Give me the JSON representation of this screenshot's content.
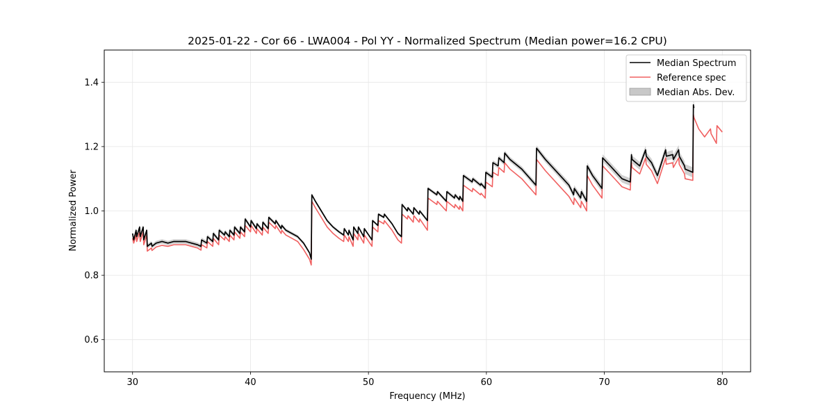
{
  "chart_data": {
    "type": "line",
    "title": "2025-01-22 - Cor 66 - LWA004 - Pol YY - Normalized Spectrum (Median power=16.2 CPU)",
    "xlabel": "Frequency (MHz)",
    "ylabel": "Normalized Power",
    "xlim": [
      27.6,
      82.4
    ],
    "ylim": [
      0.5,
      1.5
    ],
    "xticks": [
      30,
      40,
      50,
      60,
      70,
      80
    ],
    "yticks": [
      0.6,
      0.8,
      1.0,
      1.2,
      1.4
    ],
    "xtick_labels": [
      "30",
      "40",
      "50",
      "60",
      "70",
      "80"
    ],
    "ytick_labels": [
      "0.6",
      "0.8",
      "1.0",
      "1.2",
      "1.4"
    ],
    "grid": true,
    "legend_position": "top-right",
    "legend": [
      {
        "label": "Median Spectrum",
        "kind": "line",
        "color": "#000000"
      },
      {
        "label": "Reference spec",
        "kind": "line",
        "color": "#f06060"
      },
      {
        "label": "Median Abs. Dev.",
        "kind": "band",
        "color": "#c8c8c8"
      }
    ],
    "series": [
      {
        "name": "Median Spectrum",
        "color": "#000000",
        "x": [
          30.0,
          30.1,
          30.3,
          30.35,
          30.6,
          30.65,
          30.9,
          30.95,
          31.2,
          31.25,
          31.6,
          31.65,
          32.0,
          32.5,
          33.0,
          33.5,
          34.0,
          34.5,
          35.0,
          35.5,
          35.8,
          35.85,
          36.3,
          36.35,
          36.8,
          36.85,
          37.3,
          37.35,
          37.8,
          37.85,
          38.2,
          38.25,
          38.6,
          38.65,
          39.1,
          39.15,
          39.5,
          39.55,
          40.0,
          40.05,
          40.5,
          40.55,
          41.0,
          41.05,
          41.5,
          41.55,
          42.1,
          42.15,
          42.6,
          42.65,
          43.0,
          43.5,
          44.0,
          44.5,
          45.0,
          45.15,
          45.2,
          45.5,
          46.0,
          46.5,
          47.0,
          47.5,
          47.9,
          47.95,
          48.3,
          48.35,
          48.7,
          48.75,
          49.1,
          49.15,
          49.6,
          49.65,
          50.3,
          50.35,
          50.8,
          50.85,
          51.3,
          51.35,
          52.0,
          52.5,
          52.8,
          52.85,
          53.3,
          53.35,
          53.8,
          53.85,
          54.3,
          54.35,
          55.0,
          55.05,
          55.8,
          55.85,
          56.6,
          56.65,
          57.3,
          57.35,
          57.7,
          57.75,
          58.0,
          58.05,
          58.8,
          58.85,
          59.5,
          59.55,
          59.9,
          59.95,
          60.5,
          60.55,
          61.0,
          61.05,
          61.5,
          61.55,
          62.0,
          63.0,
          64.2,
          64.25,
          65.0,
          66.0,
          67.0,
          67.4,
          67.45,
          68.0,
          68.05,
          68.5,
          68.55,
          69.0,
          69.8,
          69.85,
          70.5,
          71.0,
          71.5,
          72.2,
          72.3,
          72.35,
          73.0,
          73.5,
          73.55,
          74.0,
          74.5,
          75.2,
          75.25,
          75.8,
          75.85,
          76.3,
          76.35,
          76.8,
          76.85,
          77.5,
          77.55,
          77.6
        ],
        "values": [
          0.93,
          0.91,
          0.94,
          0.92,
          0.95,
          0.92,
          0.95,
          0.91,
          0.94,
          0.89,
          0.9,
          0.89,
          0.9,
          0.905,
          0.9,
          0.905,
          0.905,
          0.905,
          0.9,
          0.895,
          0.89,
          0.91,
          0.9,
          0.92,
          0.905,
          0.93,
          0.91,
          0.94,
          0.925,
          0.935,
          0.92,
          0.94,
          0.925,
          0.95,
          0.93,
          0.95,
          0.935,
          0.975,
          0.95,
          0.97,
          0.945,
          0.96,
          0.94,
          0.965,
          0.945,
          0.98,
          0.96,
          0.97,
          0.945,
          0.955,
          0.94,
          0.93,
          0.92,
          0.9,
          0.87,
          0.85,
          1.05,
          1.03,
          1.0,
          0.97,
          0.95,
          0.935,
          0.925,
          0.945,
          0.925,
          0.94,
          0.91,
          0.95,
          0.93,
          0.95,
          0.92,
          0.945,
          0.91,
          0.97,
          0.955,
          0.99,
          0.98,
          0.99,
          0.96,
          0.93,
          0.92,
          1.02,
          1.0,
          1.01,
          0.99,
          1.01,
          0.99,
          1.0,
          0.97,
          1.07,
          1.05,
          1.06,
          1.03,
          1.06,
          1.04,
          1.05,
          1.035,
          1.045,
          1.03,
          1.11,
          1.09,
          1.1,
          1.08,
          1.085,
          1.07,
          1.12,
          1.105,
          1.15,
          1.14,
          1.165,
          1.15,
          1.18,
          1.16,
          1.13,
          1.08,
          1.195,
          1.16,
          1.12,
          1.08,
          1.05,
          1.07,
          1.04,
          1.06,
          1.03,
          1.14,
          1.11,
          1.07,
          1.165,
          1.14,
          1.12,
          1.1,
          1.09,
          1.175,
          1.16,
          1.14,
          1.19,
          1.17,
          1.15,
          1.11,
          1.19,
          1.17,
          1.175,
          1.16,
          1.19,
          1.17,
          1.14,
          1.13,
          1.12,
          1.33,
          1.32
        ]
      },
      {
        "name": "Reference spec",
        "color": "#f06060",
        "x": [
          30.0,
          30.1,
          30.3,
          30.35,
          30.6,
          30.65,
          30.9,
          30.95,
          31.2,
          31.25,
          31.6,
          31.65,
          32.0,
          32.5,
          33.0,
          33.5,
          34.0,
          34.5,
          35.0,
          35.5,
          35.8,
          35.85,
          36.3,
          36.35,
          36.8,
          36.85,
          37.3,
          37.35,
          37.8,
          37.85,
          38.2,
          38.25,
          38.6,
          38.65,
          39.1,
          39.15,
          39.5,
          39.55,
          40.0,
          40.05,
          40.5,
          40.55,
          41.0,
          41.05,
          41.5,
          41.55,
          42.1,
          42.15,
          42.6,
          42.65,
          43.0,
          43.5,
          44.0,
          44.5,
          45.0,
          45.15,
          45.2,
          45.5,
          46.0,
          46.5,
          47.0,
          47.5,
          47.9,
          47.95,
          48.3,
          48.35,
          48.7,
          48.75,
          49.1,
          49.15,
          49.6,
          49.65,
          50.3,
          50.35,
          50.8,
          50.85,
          51.3,
          51.35,
          52.0,
          52.5,
          52.8,
          52.85,
          53.3,
          53.35,
          53.8,
          53.85,
          54.3,
          54.35,
          55.0,
          55.05,
          55.8,
          55.85,
          56.6,
          56.65,
          57.3,
          57.35,
          57.7,
          57.75,
          58.0,
          58.05,
          58.8,
          58.85,
          59.5,
          59.55,
          59.9,
          59.95,
          60.5,
          60.55,
          61.0,
          61.05,
          61.5,
          61.55,
          62.0,
          63.0,
          64.2,
          64.25,
          65.0,
          66.0,
          67.0,
          67.4,
          67.45,
          68.0,
          68.05,
          68.5,
          68.55,
          69.0,
          69.8,
          69.85,
          70.5,
          71.0,
          71.5,
          72.2,
          72.3,
          72.35,
          73.0,
          73.5,
          73.55,
          74.0,
          74.5,
          75.2,
          75.25,
          75.8,
          75.85,
          76.3,
          76.35,
          76.8,
          76.85,
          77.5,
          77.55,
          77.6,
          78.0,
          78.5,
          79.0,
          79.05,
          79.5,
          79.55,
          80.0
        ],
        "values": [
          0.915,
          0.9,
          0.925,
          0.905,
          0.935,
          0.905,
          0.935,
          0.895,
          0.925,
          0.875,
          0.885,
          0.877,
          0.888,
          0.893,
          0.89,
          0.895,
          0.895,
          0.895,
          0.89,
          0.885,
          0.878,
          0.895,
          0.885,
          0.905,
          0.89,
          0.915,
          0.895,
          0.925,
          0.91,
          0.92,
          0.905,
          0.925,
          0.91,
          0.935,
          0.915,
          0.935,
          0.92,
          0.955,
          0.935,
          0.955,
          0.93,
          0.945,
          0.925,
          0.95,
          0.93,
          0.965,
          0.945,
          0.955,
          0.93,
          0.94,
          0.925,
          0.915,
          0.905,
          0.88,
          0.85,
          0.832,
          1.03,
          1.01,
          0.98,
          0.95,
          0.93,
          0.915,
          0.905,
          0.925,
          0.905,
          0.92,
          0.89,
          0.93,
          0.91,
          0.93,
          0.9,
          0.925,
          0.89,
          0.95,
          0.935,
          0.97,
          0.96,
          0.97,
          0.94,
          0.91,
          0.9,
          0.99,
          0.975,
          0.985,
          0.965,
          0.985,
          0.965,
          0.975,
          0.94,
          1.04,
          1.02,
          1.03,
          1.0,
          1.03,
          1.01,
          1.02,
          1.005,
          1.015,
          1.0,
          1.08,
          1.06,
          1.07,
          1.05,
          1.055,
          1.04,
          1.09,
          1.075,
          1.12,
          1.11,
          1.135,
          1.12,
          1.15,
          1.13,
          1.1,
          1.05,
          1.16,
          1.125,
          1.085,
          1.045,
          1.02,
          1.04,
          1.01,
          1.03,
          1.0,
          1.11,
          1.08,
          1.04,
          1.14,
          1.115,
          1.095,
          1.075,
          1.065,
          1.15,
          1.135,
          1.115,
          1.165,
          1.145,
          1.125,
          1.085,
          1.165,
          1.145,
          1.15,
          1.135,
          1.165,
          1.145,
          1.115,
          1.1,
          1.095,
          1.3,
          1.29,
          1.255,
          1.23,
          1.255,
          1.24,
          1.21,
          1.265,
          1.245
        ]
      }
    ],
    "band": {
      "name": "Median Abs. Dev.",
      "color": "#c8c8c8",
      "half_widths": [
        [
          30.0,
          0.006
        ],
        [
          32.0,
          0.007
        ],
        [
          36.0,
          0.007
        ],
        [
          40.0,
          0.006
        ],
        [
          45.0,
          0.005
        ],
        [
          50.0,
          0.004
        ],
        [
          55.0,
          0.005
        ],
        [
          60.0,
          0.007
        ],
        [
          65.0,
          0.009
        ],
        [
          70.0,
          0.011
        ],
        [
          75.0,
          0.013
        ],
        [
          77.6,
          0.016
        ]
      ]
    }
  }
}
